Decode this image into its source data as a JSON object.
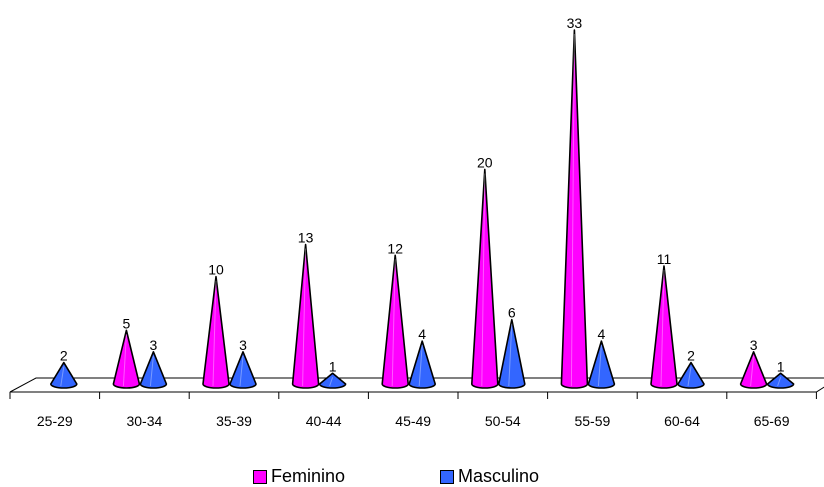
{
  "chart_data": {
    "type": "bar",
    "categories": [
      "25-29",
      "30-34",
      "35-39",
      "40-44",
      "45-49",
      "50-54",
      "55-59",
      "60-64",
      "65-69"
    ],
    "series": [
      {
        "name": "Feminino",
        "color": "#FF00FF",
        "values": [
          0,
          5,
          10,
          13,
          12,
          20,
          33,
          11,
          3
        ]
      },
      {
        "name": "Masculino",
        "color": "#3366FF",
        "values": [
          2,
          3,
          3,
          1,
          4,
          6,
          4,
          2,
          1
        ]
      }
    ],
    "data_labels": {
      "Feminino": [
        "",
        "5",
        "10",
        "13",
        "12",
        "20",
        "33",
        "11",
        "3"
      ],
      "Masculino": [
        "2",
        "3",
        "3",
        "1",
        "4",
        "6",
        "4",
        "2",
        "1"
      ]
    },
    "ylim": [
      0,
      33
    ],
    "grid": false,
    "legend_position": "bottom",
    "shape": "cone"
  }
}
